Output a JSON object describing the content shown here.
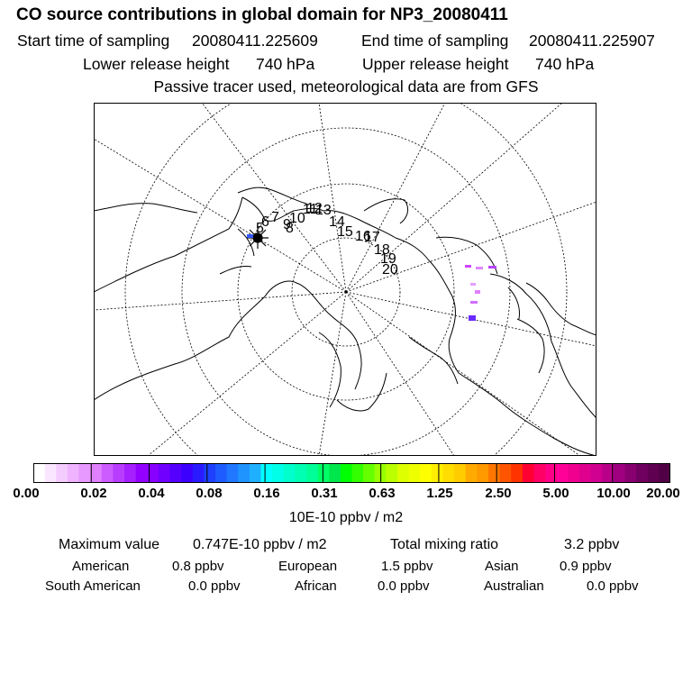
{
  "header": {
    "title": "CO  source contributions in global domain for NP3_20080411",
    "start_label": "Start time of sampling",
    "start_value": "20080411.225609",
    "end_label": "End time of sampling",
    "end_value": "20080411.225907",
    "lower_label": "Lower release height",
    "lower_value": "740 hPa",
    "upper_label": "Upper release height",
    "upper_value": "740 hPa",
    "note": "Passive tracer used, meteorological data are from GFS"
  },
  "map": {
    "projection": "polar-stereographic-north",
    "track_labels": [
      "5",
      "6",
      "7",
      "8",
      "9",
      "10",
      "11",
      "12",
      "13",
      "14",
      "15",
      "16",
      "17",
      "18",
      "19",
      "20"
    ],
    "source_color": "#3355ff"
  },
  "legend": {
    "tick_labels": [
      "0.00",
      "0.02",
      "0.04",
      "0.08",
      "0.16",
      "0.31",
      "0.63",
      "1.25",
      "2.50",
      "5.00",
      "10.00",
      "20.00"
    ],
    "colors": [
      "#ffffff",
      "#fbe6ff",
      "#f5ccff",
      "#efb3ff",
      "#e899ff",
      "#e080ff",
      "#cc5cff",
      "#b83dff",
      "#a61fff",
      "#9400ff",
      "#8800ff",
      "#7000ff",
      "#5500ff",
      "#3c00ff",
      "#2a1aff",
      "#1e40ff",
      "#1f5cff",
      "#1f78ff",
      "#1f94ff",
      "#1fb0ff",
      "#00ffff",
      "#00ffe6",
      "#00ffcc",
      "#00ffb3",
      "#00ff99",
      "#00ff66",
      "#00e64d",
      "#00ff00",
      "#33ff00",
      "#66ff00",
      "#99ff00",
      "#bbff00",
      "#ddff00",
      "#eeff00",
      "#ffff00",
      "#ffee00",
      "#ffdd00",
      "#ffcc00",
      "#ffaa00",
      "#ff9900",
      "#ff7700",
      "#ff5500",
      "#ff3300",
      "#ff0033",
      "#ff0066",
      "#ff0088",
      "#ff0099",
      "#f0008f",
      "#e00090",
      "#d00090",
      "#b80088",
      "#a00080",
      "#880070",
      "#700060",
      "#600050",
      "#500045"
    ],
    "units": "10E-10 ppbv / m2"
  },
  "stats": {
    "max_label": "Maximum value",
    "max_value": "0.747E-10 ppbv / m2",
    "total_label": "Total mixing ratio",
    "total_value": "3.2 ppbv",
    "regions": [
      {
        "name": "American",
        "value": "0.8 ppbv"
      },
      {
        "name": "European",
        "value": "1.5 ppbv"
      },
      {
        "name": "Asian",
        "value": "0.9 ppbv"
      },
      {
        "name": "South American",
        "value": "0.0 ppbv"
      },
      {
        "name": "African",
        "value": "0.0 ppbv"
      },
      {
        "name": "Australian",
        "value": "0.0 ppbv"
      }
    ]
  }
}
